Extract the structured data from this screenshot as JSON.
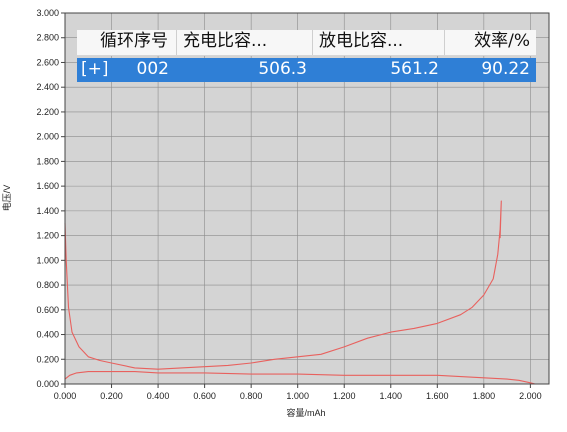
{
  "chart_data": {
    "type": "line",
    "title": "",
    "xlabel": "容量/mAh",
    "ylabel": "电压/V",
    "xlim": [
      0.0,
      2.08
    ],
    "ylim": [
      0.0,
      3.0
    ],
    "x_ticks": [
      0.0,
      0.2,
      0.4,
      0.6,
      0.8,
      1.0,
      1.2,
      1.4,
      1.6,
      1.8,
      2.0
    ],
    "x_tick_labels": [
      "0.000",
      "0.200",
      "0.400",
      "0.600",
      "0.800",
      "1.000",
      "1.200",
      "1.400",
      "1.600",
      "1.800",
      "2.000"
    ],
    "y_ticks": [
      0.0,
      0.2,
      0.4,
      0.6,
      0.8,
      1.0,
      1.2,
      1.4,
      1.6,
      1.8,
      2.0,
      2.2,
      2.4,
      2.6,
      2.8,
      3.0
    ],
    "y_tick_labels": [
      "0.000",
      "0.200",
      "0.400",
      "0.600",
      "0.800",
      "1.000",
      "1.200",
      "1.400",
      "1.600",
      "1.800",
      "2.000",
      "2.200",
      "2.400",
      "2.600",
      "2.800",
      "3.000"
    ],
    "grid": true,
    "colors": {
      "plot_background": "#d4d4d4",
      "grid": "#8c8c8c",
      "series": "#e8615e",
      "axis": "#444444"
    },
    "series": [
      {
        "name": "",
        "x": [
          0.0,
          0.005,
          0.015,
          0.03,
          0.06,
          0.1,
          0.15,
          0.2,
          0.3,
          0.4,
          0.5,
          0.6,
          0.7,
          0.8,
          0.9,
          1.0,
          1.1,
          1.2,
          1.3,
          1.4,
          1.5,
          1.6,
          1.7,
          1.75,
          1.8,
          1.84,
          1.86,
          1.87,
          1.875,
          1.87
        ],
        "y": [
          1.3,
          1.0,
          0.62,
          0.42,
          0.3,
          0.22,
          0.19,
          0.17,
          0.13,
          0.12,
          0.13,
          0.14,
          0.15,
          0.17,
          0.2,
          0.22,
          0.24,
          0.3,
          0.37,
          0.42,
          0.45,
          0.49,
          0.56,
          0.62,
          0.72,
          0.85,
          1.05,
          1.25,
          1.48,
          1.18
        ]
      },
      {
        "name": "",
        "x": [
          0.0,
          0.02,
          0.05,
          0.1,
          0.2,
          0.3,
          0.4,
          0.5,
          0.6,
          0.8,
          1.0,
          1.2,
          1.4,
          1.6,
          1.8,
          1.9,
          1.95,
          2.0,
          2.02
        ],
        "y": [
          0.04,
          0.07,
          0.09,
          0.1,
          0.1,
          0.1,
          0.09,
          0.09,
          0.09,
          0.08,
          0.08,
          0.07,
          0.07,
          0.07,
          0.05,
          0.04,
          0.03,
          0.01,
          0.0
        ]
      }
    ]
  },
  "cycle_table": {
    "headers": [
      "循环序号",
      "充电比容...",
      "放电比容...",
      "效率/%"
    ],
    "row": {
      "expander": "[+]",
      "cycle_no": "002",
      "charge_capacity": "506.3",
      "discharge_capacity": "561.2",
      "efficiency": "90.22"
    },
    "selection_color": "#2f7fd6"
  }
}
